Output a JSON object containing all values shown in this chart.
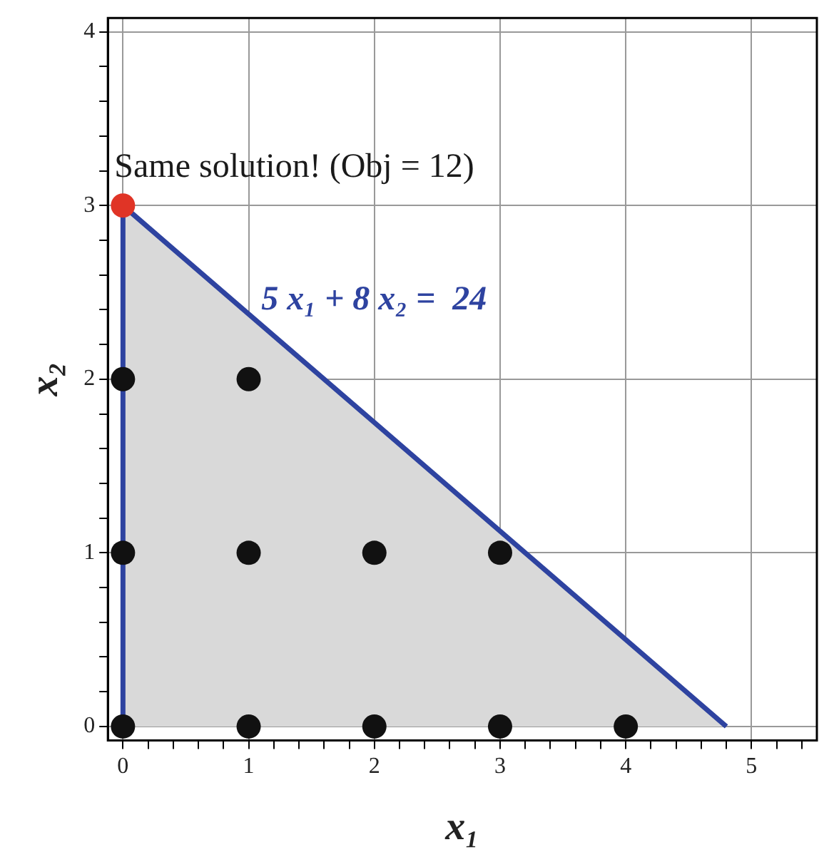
{
  "chart_data": {
    "type": "scatter",
    "xlabel": "x₁",
    "ylabel": "x₂",
    "xlim": [
      -0.12,
      5.52
    ],
    "ylim": [
      -0.08,
      4.08
    ],
    "xticks": [
      0,
      {
        "value": 0.2,
        "label": null
      },
      {
        "value": 0.4,
        "label": null
      },
      {
        "value": 0.6,
        "label": null
      },
      {
        "value": 0.8,
        "label": null
      },
      1,
      {
        "value": 1.2,
        "label": null
      },
      {
        "value": 1.4,
        "label": null
      },
      {
        "value": 1.6,
        "label": null
      },
      {
        "value": 1.8,
        "label": null
      },
      2,
      {
        "value": 2.2,
        "label": null
      },
      {
        "value": 2.4,
        "label": null
      },
      {
        "value": 2.6,
        "label": null
      },
      {
        "value": 2.8,
        "label": null
      },
      3,
      {
        "value": 3.2,
        "label": null
      },
      {
        "value": 3.4,
        "label": null
      },
      {
        "value": 3.6,
        "label": null
      },
      {
        "value": 3.8,
        "label": null
      },
      4,
      {
        "value": 4.2,
        "label": null
      },
      {
        "value": 4.4,
        "label": null
      },
      {
        "value": 4.6,
        "label": null
      },
      {
        "value": 4.8,
        "label": null
      },
      5,
      {
        "value": 5.2,
        "label": null
      },
      {
        "value": 5.4,
        "label": null
      }
    ],
    "yticks": [
      0,
      {
        "value": 0.2,
        "label": null
      },
      {
        "value": 0.4,
        "label": null
      },
      {
        "value": 0.6,
        "label": null
      },
      {
        "value": 0.8,
        "label": null
      },
      1,
      {
        "value": 1.2,
        "label": null
      },
      {
        "value": 1.4,
        "label": null
      },
      {
        "value": 1.6,
        "label": null
      },
      {
        "value": 1.8,
        "label": null
      },
      2,
      {
        "value": 2.2,
        "label": null
      },
      {
        "value": 2.4,
        "label": null
      },
      {
        "value": 2.6,
        "label": null
      },
      {
        "value": 2.8,
        "label": null
      },
      3,
      {
        "value": 3.2,
        "label": null
      },
      {
        "value": 3.4,
        "label": null
      },
      {
        "value": 3.6,
        "label": null
      },
      {
        "value": 3.8,
        "label": null
      },
      4
    ],
    "grid": true,
    "legend": false,
    "marker": "circle",
    "series": [
      {
        "type": "area",
        "marker": "none",
        "color": "#2e43a0",
        "x": [
          0,
          0,
          4.8
        ],
        "values": [
          0,
          3,
          0
        ]
      },
      {
        "color": "#111111",
        "x": [
          0,
          1,
          2,
          3,
          4,
          0,
          1,
          2,
          3,
          0,
          1
        ],
        "values": [
          0,
          0,
          0,
          0,
          0,
          1,
          1,
          1,
          1,
          2,
          2
        ]
      },
      {
        "color": "#e03426",
        "x": [
          0
        ],
        "values": [
          3
        ]
      }
    ],
    "annotations": [
      {
        "text": "Same solution! (Obj = 12)",
        "x": 0,
        "y": 3
      },
      "5 x₁ + 8 x₂ =  24"
    ]
  }
}
